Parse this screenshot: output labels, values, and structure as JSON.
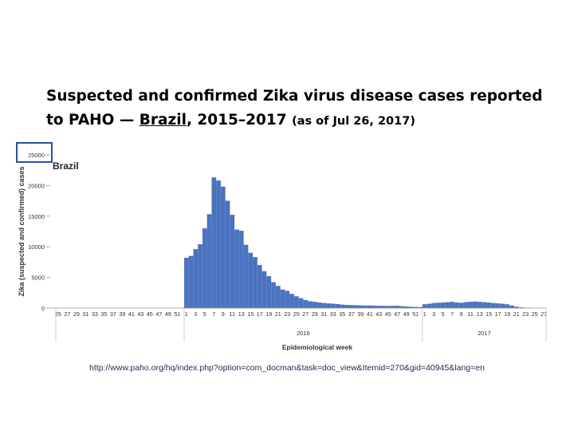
{
  "slide": {
    "title_part1": "Suspected and confirmed Zika virus disease cases reported",
    "title_part2": "to PAHO — ",
    "title_country": "Brazil",
    "title_part3": ", 2015–2017 ",
    "title_date": "(as of Jul 26, 2017)",
    "source_url": "http://www.paho.org/hq/index.php?option=com_docman&task=doc_view&Itemid=270&gid=40945&lang=en"
  },
  "chart_data": {
    "type": "bar",
    "title": "Brazil",
    "ylabel": "Zika (suspected and confirmed) cases",
    "xlabel": "Epidemiological week",
    "ylim": [
      0,
      25000
    ],
    "yticks": [
      0,
      5000,
      10000,
      15000,
      20000,
      25000
    ],
    "bar_color": "#4a73c0",
    "grid": false,
    "years": [
      {
        "label": "2016",
        "tick_labels": [
          "25",
          "27",
          "29",
          "31",
          "33",
          "35",
          "37",
          "39",
          "41",
          "43",
          "45",
          "47",
          "49",
          "51",
          "1",
          "3",
          "5",
          "7",
          "9",
          "11",
          "13",
          "15",
          "17",
          "19",
          "21",
          "23",
          "25",
          "27",
          "29",
          "31",
          "33",
          "35",
          "37",
          "39",
          "41",
          "43",
          "45",
          "47",
          "49",
          "51"
        ]
      },
      {
        "label": "2017",
        "tick_labels": [
          "1",
          "3",
          "5",
          "7",
          "9",
          "11",
          "13",
          "15",
          "17",
          "19",
          "21",
          "23",
          "25",
          "27"
        ]
      }
    ],
    "categories": [
      "2015-W25",
      "2015-W26",
      "2015-W27",
      "2015-W28",
      "2015-W29",
      "2015-W30",
      "2015-W31",
      "2015-W32",
      "2015-W33",
      "2015-W34",
      "2015-W35",
      "2015-W36",
      "2015-W37",
      "2015-W38",
      "2015-W39",
      "2015-W40",
      "2015-W41",
      "2015-W42",
      "2015-W43",
      "2015-W44",
      "2015-W45",
      "2015-W46",
      "2015-W47",
      "2015-W48",
      "2015-W49",
      "2015-W50",
      "2015-W51",
      "2015-W52",
      "2016-W01",
      "2016-W02",
      "2016-W03",
      "2016-W04",
      "2016-W05",
      "2016-W06",
      "2016-W07",
      "2016-W08",
      "2016-W09",
      "2016-W10",
      "2016-W11",
      "2016-W12",
      "2016-W13",
      "2016-W14",
      "2016-W15",
      "2016-W16",
      "2016-W17",
      "2016-W18",
      "2016-W19",
      "2016-W20",
      "2016-W21",
      "2016-W22",
      "2016-W23",
      "2016-W24",
      "2016-W25",
      "2016-W26",
      "2016-W27",
      "2016-W28",
      "2016-W29",
      "2016-W30",
      "2016-W31",
      "2016-W32",
      "2016-W33",
      "2016-W34",
      "2016-W35",
      "2016-W36",
      "2016-W37",
      "2016-W38",
      "2016-W39",
      "2016-W40",
      "2016-W41",
      "2016-W42",
      "2016-W43",
      "2016-W44",
      "2016-W45",
      "2016-W46",
      "2016-W47",
      "2016-W48",
      "2016-W49",
      "2016-W50",
      "2016-W51",
      "2016-W52",
      "2017-W01",
      "2017-W02",
      "2017-W03",
      "2017-W04",
      "2017-W05",
      "2017-W06",
      "2017-W07",
      "2017-W08",
      "2017-W09",
      "2017-W10",
      "2017-W11",
      "2017-W12",
      "2017-W13",
      "2017-W14",
      "2017-W15",
      "2017-W16",
      "2017-W17",
      "2017-W18",
      "2017-W19",
      "2017-W20",
      "2017-W21",
      "2017-W22",
      "2017-W23",
      "2017-W24",
      "2017-W25",
      "2017-W26",
      "2017-W27"
    ],
    "values": [
      0,
      0,
      0,
      0,
      0,
      0,
      0,
      0,
      0,
      0,
      0,
      0,
      0,
      0,
      0,
      0,
      0,
      0,
      0,
      0,
      0,
      0,
      0,
      0,
      0,
      0,
      0,
      0,
      8200,
      8500,
      9600,
      10400,
      13000,
      15300,
      21300,
      20800,
      19800,
      17500,
      15200,
      12800,
      12600,
      10300,
      9000,
      8300,
      7000,
      6000,
      5200,
      4200,
      3600,
      3000,
      2800,
      2300,
      1900,
      1600,
      1300,
      1100,
      1000,
      900,
      800,
      750,
      700,
      650,
      550,
      500,
      480,
      450,
      420,
      400,
      400,
      380,
      370,
      350,
      330,
      360,
      380,
      300,
      250,
      200,
      180,
      150,
      600,
      700,
      800,
      850,
      900,
      950,
      1000,
      900,
      850,
      950,
      1000,
      1050,
      1000,
      950,
      900,
      800,
      750,
      700,
      600,
      400,
      200,
      100,
      50,
      20,
      0,
      0,
      0
    ]
  }
}
